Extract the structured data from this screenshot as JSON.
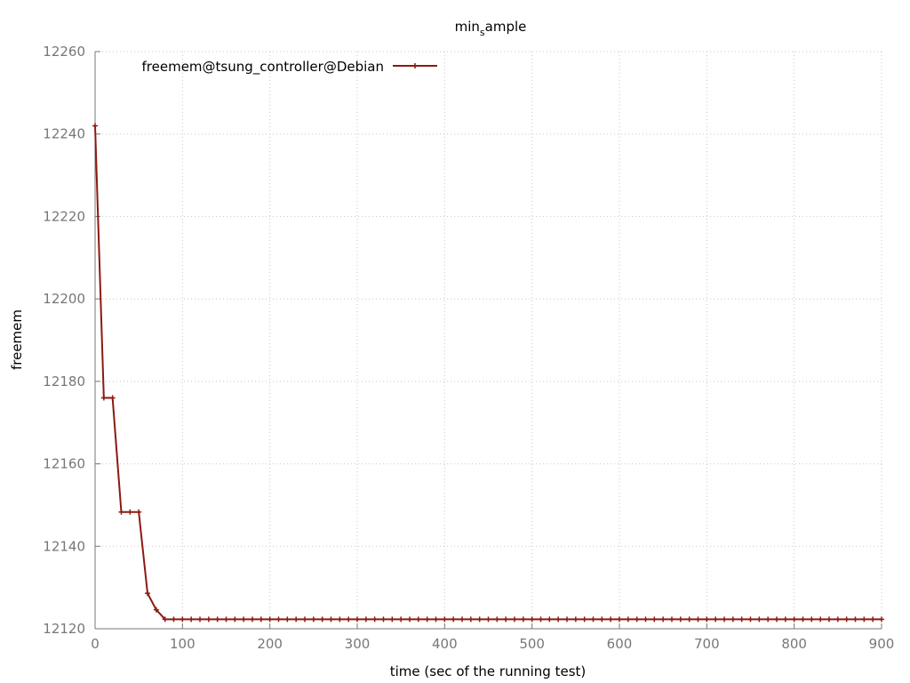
{
  "chart_data": {
    "type": "line",
    "title": {
      "base": "min",
      "sub": "s",
      "rest": "ample"
    },
    "xlabel": "time (sec of the running test)",
    "ylabel": "freemem",
    "xlim": [
      0,
      900
    ],
    "ylim": [
      12120,
      12260
    ],
    "xticks": [
      0,
      100,
      200,
      300,
      400,
      500,
      600,
      700,
      800,
      900
    ],
    "yticks": [
      12120,
      12140,
      12160,
      12180,
      12200,
      12220,
      12240,
      12260
    ],
    "grid": true,
    "legend_position": "top-left",
    "series": [
      {
        "name": "freemem@tsung_controller@Debian",
        "color": "#8b1a10",
        "marker": "plus",
        "x": [
          0,
          10,
          20,
          30,
          40,
          50,
          60,
          70,
          80,
          90,
          100,
          110,
          120,
          130,
          140,
          150,
          160,
          170,
          180,
          190,
          200,
          210,
          220,
          230,
          240,
          250,
          260,
          270,
          280,
          290,
          300,
          310,
          320,
          330,
          340,
          350,
          360,
          370,
          380,
          390,
          400,
          410,
          420,
          430,
          440,
          450,
          460,
          470,
          480,
          490,
          500,
          510,
          520,
          530,
          540,
          550,
          560,
          570,
          580,
          590,
          600,
          610,
          620,
          630,
          640,
          650,
          660,
          670,
          680,
          690,
          700,
          710,
          720,
          730,
          740,
          750,
          760,
          770,
          780,
          790,
          800,
          810,
          820,
          830,
          840,
          850,
          860,
          870,
          880,
          890,
          900
        ],
        "y": [
          12242,
          12176,
          12176,
          12148.3,
          12148.3,
          12148.3,
          12128.6,
          12124.6,
          12122.3,
          12122.3,
          12122.3,
          12122.3,
          12122.3,
          12122.3,
          12122.3,
          12122.3,
          12122.3,
          12122.3,
          12122.3,
          12122.3,
          12122.3,
          12122.3,
          12122.3,
          12122.3,
          12122.3,
          12122.3,
          12122.3,
          12122.3,
          12122.3,
          12122.3,
          12122.3,
          12122.3,
          12122.3,
          12122.3,
          12122.3,
          12122.3,
          12122.3,
          12122.3,
          12122.3,
          12122.3,
          12122.3,
          12122.3,
          12122.3,
          12122.3,
          12122.3,
          12122.3,
          12122.3,
          12122.3,
          12122.3,
          12122.3,
          12122.3,
          12122.3,
          12122.3,
          12122.3,
          12122.3,
          12122.3,
          12122.3,
          12122.3,
          12122.3,
          12122.3,
          12122.3,
          12122.3,
          12122.3,
          12122.3,
          12122.3,
          12122.3,
          12122.3,
          12122.3,
          12122.3,
          12122.3,
          12122.3,
          12122.3,
          12122.3,
          12122.3,
          12122.3,
          12122.3,
          12122.3,
          12122.3,
          12122.3,
          12122.3,
          12122.3,
          12122.3,
          12122.3,
          12122.3,
          12122.3,
          12122.3,
          12122.3,
          12122.3,
          12122.3,
          12122.3,
          12122.3
        ]
      }
    ]
  }
}
